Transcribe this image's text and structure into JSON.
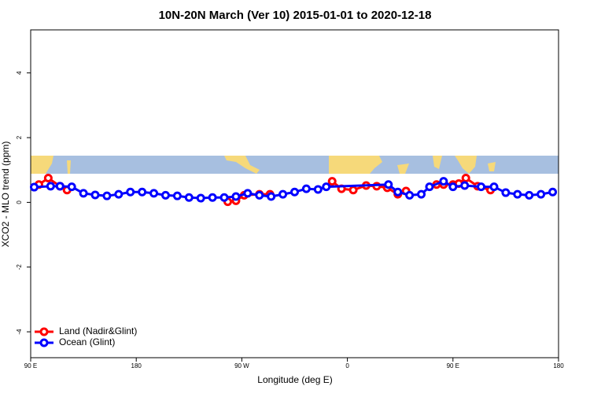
{
  "chart_data": {
    "type": "line",
    "title": "10N-20N March (Ver 10)   2015-01-01 to 2020-12-18",
    "x_label": "Longitude (deg E)",
    "y_label": "XCO2 - MLO trend (ppm)",
    "xlim": [
      90,
      540
    ],
    "xticks": [
      {
        "value": 90,
        "label": "90 E"
      },
      {
        "value": 180,
        "label": "180"
      },
      {
        "value": 270,
        "label": "90 W"
      },
      {
        "value": 360,
        "label": "0"
      },
      {
        "value": 450,
        "label": "90 E"
      },
      {
        "value": 540,
        "label": "180"
      }
    ],
    "ylim": [
      -4.8,
      5.33
    ],
    "yticks": [
      -4,
      -2,
      0,
      2,
      4
    ],
    "legend": "bottom-left",
    "series": [
      {
        "name": "Land (Nadir&Glint)",
        "color": "#ff0000",
        "x": [
          97,
          105,
          115,
          121,
          null,
          258,
          265,
          272,
          285,
          294,
          null,
          347,
          355,
          365,
          376,
          385,
          394,
          403,
          410,
          null,
          436,
          442,
          450,
          455,
          461,
          471,
          482
        ],
        "values": [
          0.55,
          0.75,
          0.5,
          0.38,
          null,
          0.02,
          0.05,
          0.22,
          0.25,
          0.25,
          null,
          0.65,
          0.42,
          0.38,
          0.52,
          0.5,
          0.45,
          0.25,
          0.35,
          null,
          0.55,
          0.55,
          0.55,
          0.58,
          0.75,
          0.5,
          0.38
        ]
      },
      {
        "name": "Ocean (Glint)",
        "color": "#0000ff",
        "x": [
          93,
          107,
          115,
          125,
          135,
          145,
          155,
          165,
          175,
          185,
          195,
          205,
          215,
          225,
          235,
          245,
          255,
          265,
          275,
          285,
          295,
          305,
          315,
          325,
          335,
          342,
          395,
          403,
          413,
          423,
          430,
          442,
          450,
          460,
          474,
          485,
          495,
          505,
          515,
          525,
          535
        ],
        "values": [
          0.47,
          0.5,
          0.5,
          0.48,
          0.28,
          0.23,
          0.2,
          0.25,
          0.32,
          0.32,
          0.28,
          0.22,
          0.2,
          0.15,
          0.13,
          0.15,
          0.15,
          0.18,
          0.28,
          0.22,
          0.18,
          0.25,
          0.32,
          0.42,
          0.4,
          0.48,
          0.55,
          0.32,
          0.22,
          0.25,
          0.48,
          0.65,
          0.48,
          0.52,
          0.48,
          0.48,
          0.3,
          0.25,
          0.22,
          0.25,
          0.32
        ]
      }
    ]
  }
}
